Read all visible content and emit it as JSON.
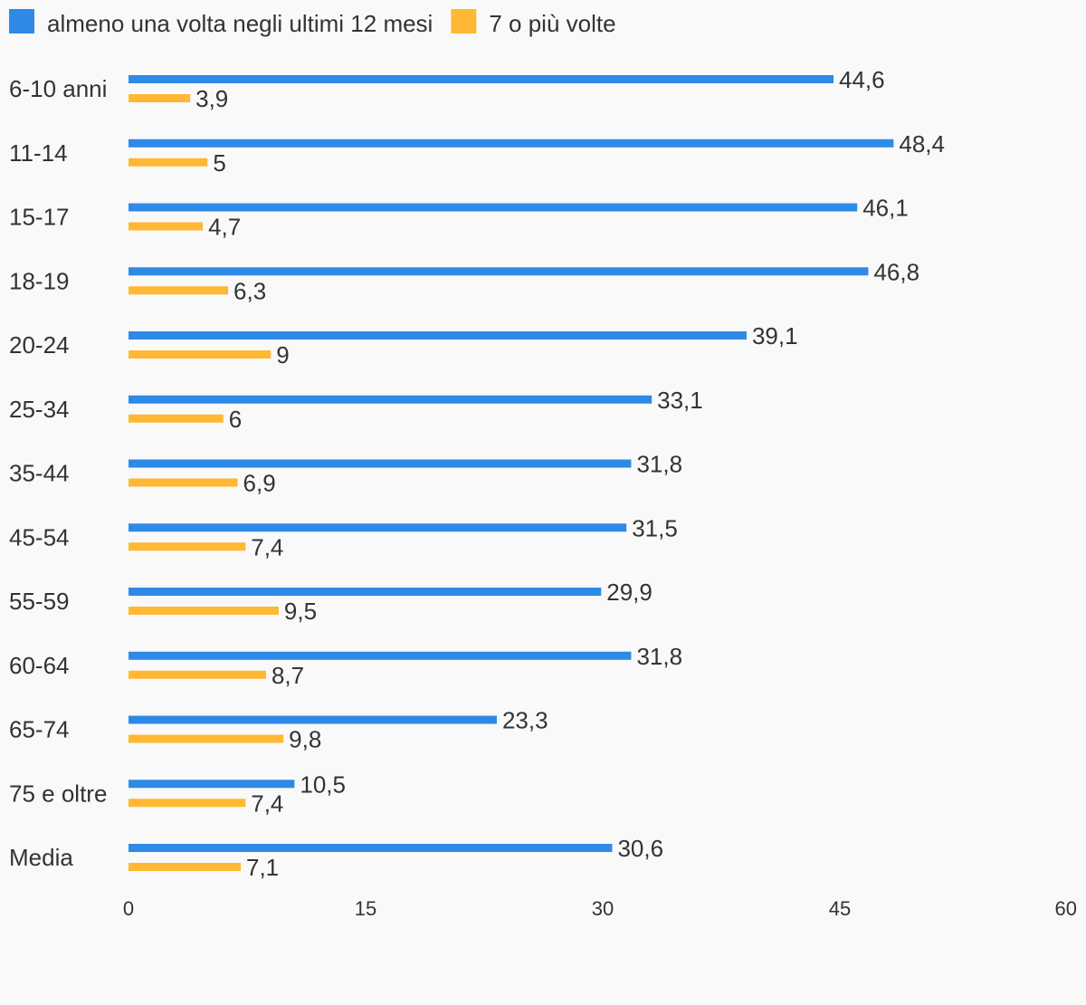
{
  "chart_data": {
    "type": "bar",
    "orientation": "horizontal",
    "categories": [
      "6-10 anni",
      "11-14",
      "15-17",
      "18-19",
      "20-24",
      "25-34",
      "35-44",
      "45-54",
      "55-59",
      "60-64",
      "65-74",
      "75 e oltre",
      "Media"
    ],
    "series": [
      {
        "name": "almeno una volta negli ultimi 12 mesi",
        "color": "#2e8ae6",
        "values": [
          44.6,
          48.4,
          46.1,
          46.8,
          39.1,
          33.1,
          31.8,
          31.5,
          29.9,
          31.8,
          23.3,
          10.5,
          30.6
        ],
        "labels": [
          "44,6",
          "48,4",
          "46,1",
          "46,8",
          "39,1",
          "33,1",
          "31,8",
          "31,5",
          "29,9",
          "31,8",
          "23,3",
          "10,5",
          "30,6"
        ]
      },
      {
        "name": "7 o più volte",
        "color": "#ffb833",
        "values": [
          3.9,
          5,
          4.7,
          6.3,
          9,
          6,
          6.9,
          7.4,
          9.5,
          8.7,
          9.8,
          7.4,
          7.1
        ],
        "labels": [
          "3,9",
          "5",
          "4,7",
          "6,3",
          "9",
          "6",
          "6,9",
          "7,4",
          "9,5",
          "8,7",
          "9,8",
          "7,4",
          "7,1"
        ]
      }
    ],
    "xlim": [
      0,
      60
    ],
    "xticks": [
      "0",
      "15",
      "30",
      "45",
      "60"
    ],
    "xtick_values": [
      0,
      15,
      30,
      45,
      60
    ],
    "grid": false,
    "legend": "top-left"
  }
}
